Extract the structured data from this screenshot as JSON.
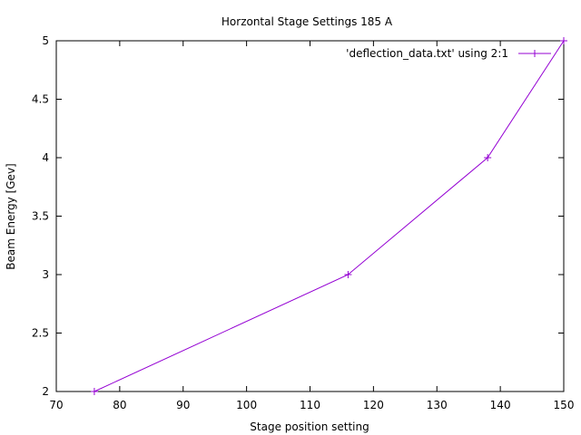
{
  "chart_data": {
    "type": "line",
    "title": "Horzontal Stage Settings 185 A",
    "xlabel": "Stage position setting",
    "ylabel": "Beam Energy [Gev]",
    "xlim": [
      70,
      150
    ],
    "ylim": [
      2,
      5
    ],
    "xticks": [
      "70",
      "80",
      "90",
      "100",
      "110",
      "120",
      "130",
      "140",
      "150"
    ],
    "yticks": [
      "2",
      "2.5",
      "3",
      "3.5",
      "4",
      "4.5",
      "5"
    ],
    "grid": false,
    "legend_position": "top-right",
    "series": [
      {
        "name": "'deflection_data.txt' using 2:1",
        "color": "#9400d3",
        "marker": "plus",
        "x": [
          76,
          116,
          138,
          150
        ],
        "y": [
          2,
          3,
          4,
          5
        ]
      }
    ]
  }
}
